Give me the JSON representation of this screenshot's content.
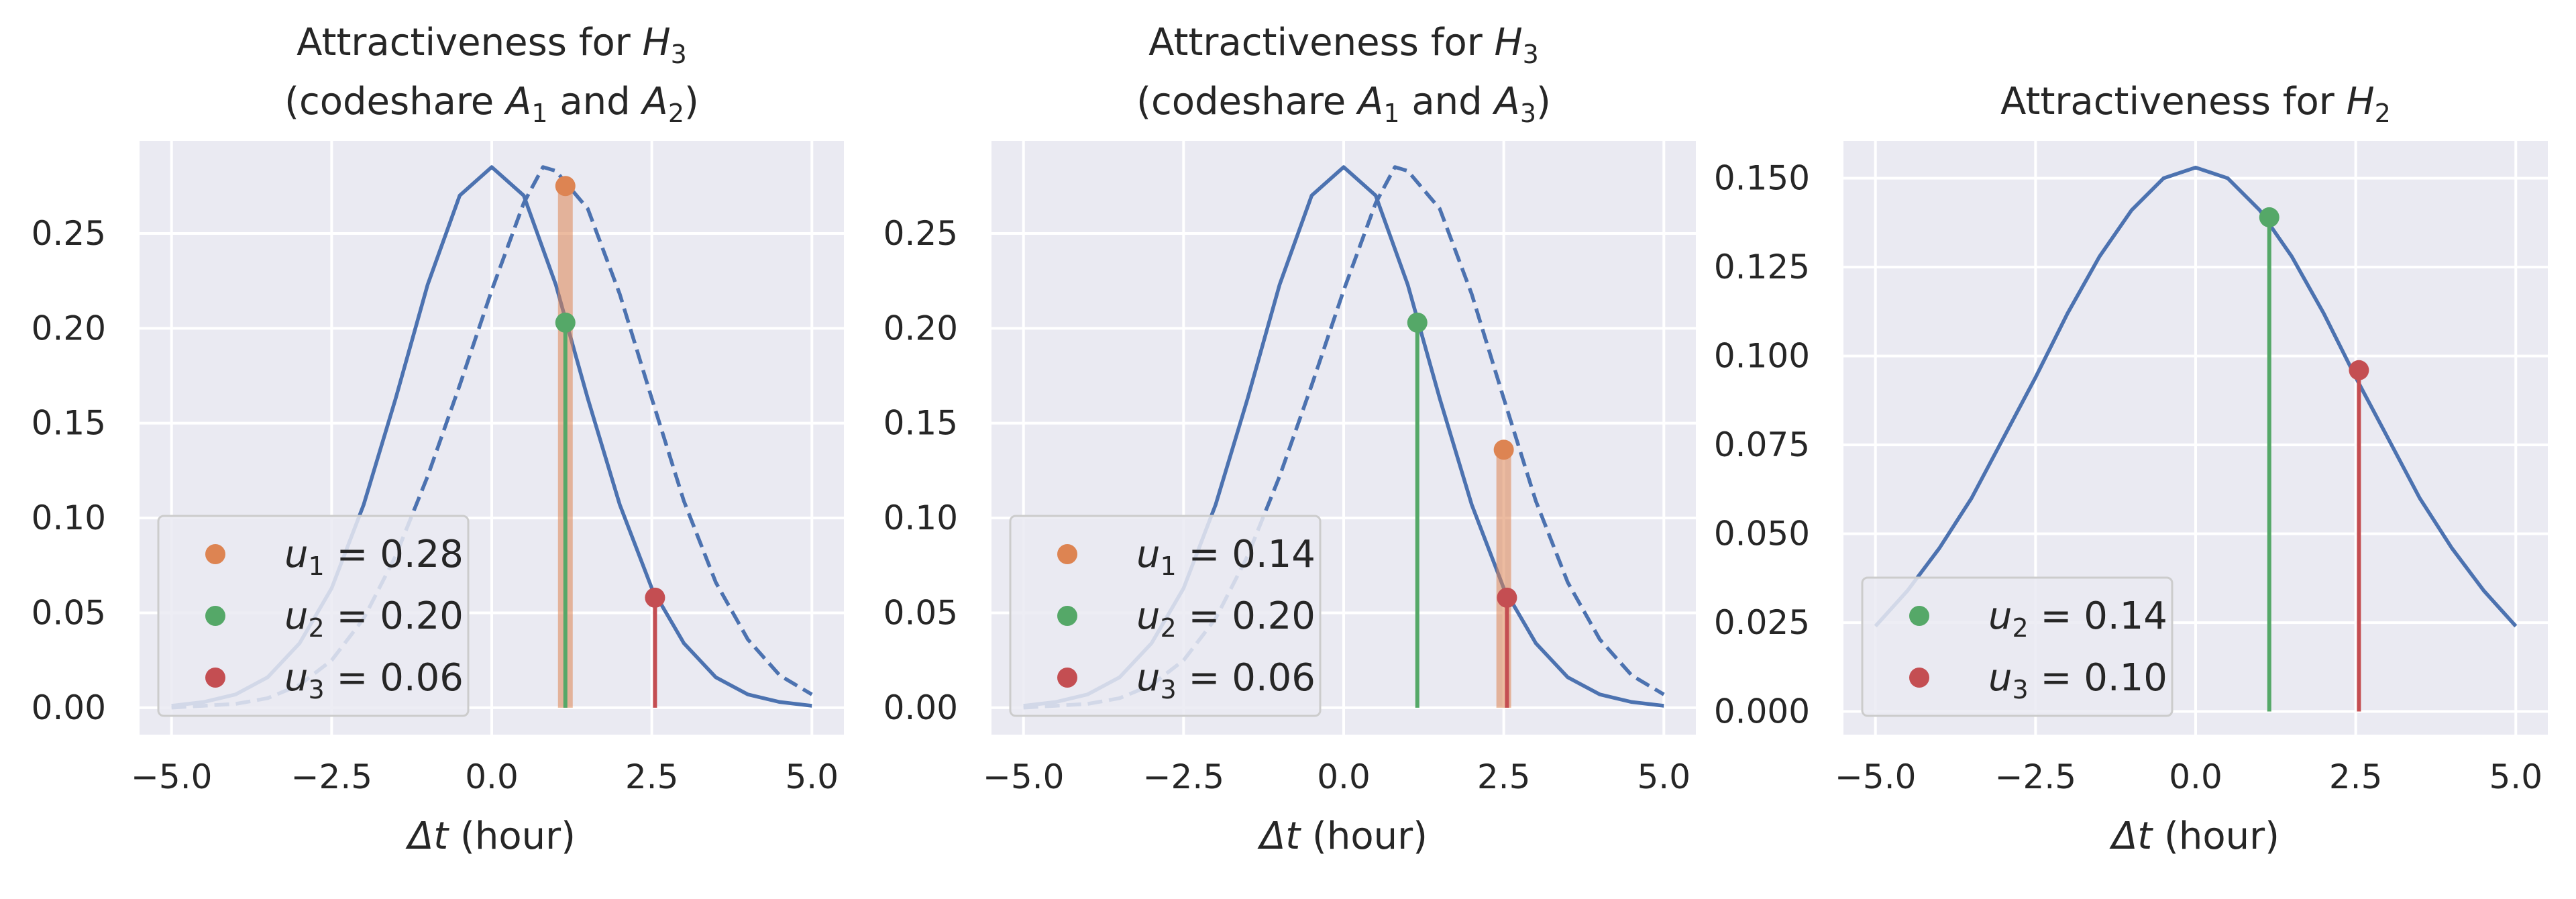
{
  "figure": {
    "colors": {
      "background": "#eaeaf2",
      "grid": "#ffffff",
      "blue": "#4c72b0",
      "orange": "#dd8452",
      "green": "#55a868",
      "red": "#c44e52",
      "text": "#262626",
      "legend_bg": "#eaeaf2",
      "legend_edge": "#cccccc"
    }
  },
  "chart_data": [
    {
      "type": "line",
      "title_line1_text": "Attractiveness for ",
      "title_line1_math": "H",
      "title_line1_sub": "3",
      "title_line2": [
        "(codeshare ",
        "A",
        "1",
        " and ",
        "A",
        "2",
        ")"
      ],
      "xlabel_math": "Δt",
      "xlabel_text": " (hour)",
      "ylabel": "",
      "xlim": [
        -5.5,
        5.5
      ],
      "ylim": [
        -0.0142,
        0.2988
      ],
      "xticks": [
        -5.0,
        -2.5,
        0.0,
        2.5,
        5.0
      ],
      "xtick_labels": [
        "−5.0",
        "−2.5",
        "0.0",
        "2.5",
        "5.0"
      ],
      "yticks": [
        0.0,
        0.05,
        0.1,
        0.15,
        0.2,
        0.25
      ],
      "ytick_labels": [
        "0.00",
        "0.05",
        "0.10",
        "0.15",
        "0.20",
        "0.25"
      ],
      "grid": true,
      "legend_position": "lower-left",
      "series": [
        {
          "style": "solid",
          "x": [
            -5.0,
            -4.5,
            -4.0,
            -3.5,
            -3.0,
            -2.5,
            -2.0,
            -1.5,
            -1.0,
            -0.5,
            0.0,
            0.5,
            1.0,
            1.5,
            2.0,
            2.5,
            3.0,
            3.5,
            4.0,
            4.5,
            5.0
          ],
          "y": [
            0.001,
            0.003,
            0.007,
            0.016,
            0.034,
            0.063,
            0.107,
            0.163,
            0.223,
            0.27,
            0.285,
            0.27,
            0.223,
            0.163,
            0.107,
            0.063,
            0.034,
            0.016,
            0.007,
            0.003,
            0.001
          ]
        },
        {
          "style": "dashed",
          "x": [
            -5.0,
            -4.5,
            -4.0,
            -3.5,
            -3.0,
            -2.5,
            -2.0,
            -1.5,
            -1.0,
            -0.5,
            0.0,
            0.5,
            0.8,
            1.0,
            1.5,
            2.0,
            2.5,
            3.0,
            3.5,
            4.0,
            4.5,
            5.0
          ],
          "y": [
            0.0,
            0.001,
            0.002,
            0.005,
            0.012,
            0.025,
            0.047,
            0.08,
            0.122,
            0.17,
            0.22,
            0.266,
            0.285,
            0.283,
            0.263,
            0.218,
            0.163,
            0.109,
            0.066,
            0.036,
            0.017,
            0.007
          ]
        }
      ],
      "points": [
        {
          "name": "u1",
          "sym": "u",
          "sub": "1",
          "value_label": "0.28",
          "x": 1.15,
          "y": 0.275,
          "color": "orange",
          "stem": true
        },
        {
          "name": "u2",
          "sym": "u",
          "sub": "2",
          "value_label": "0.20",
          "x": 1.15,
          "y": 0.203,
          "color": "green",
          "stem": true
        },
        {
          "name": "u3",
          "sym": "u",
          "sub": "3",
          "value_label": "0.06",
          "x": 2.55,
          "y": 0.058,
          "color": "red",
          "stem": true
        }
      ]
    },
    {
      "type": "line",
      "title_line1_text": "Attractiveness for ",
      "title_line1_math": "H",
      "title_line1_sub": "3",
      "title_line2": [
        "(codeshare ",
        "A",
        "1",
        " and ",
        "A",
        "3",
        ")"
      ],
      "xlabel_math": "Δt",
      "xlabel_text": " (hour)",
      "ylabel": "",
      "xlim": [
        -5.5,
        5.5
      ],
      "ylim": [
        -0.0142,
        0.2988
      ],
      "xticks": [
        -5.0,
        -2.5,
        0.0,
        2.5,
        5.0
      ],
      "xtick_labels": [
        "−5.0",
        "−2.5",
        "0.0",
        "2.5",
        "5.0"
      ],
      "yticks": [
        0.0,
        0.05,
        0.1,
        0.15,
        0.2,
        0.25
      ],
      "ytick_labels": [
        "0.00",
        "0.05",
        "0.10",
        "0.15",
        "0.20",
        "0.25"
      ],
      "grid": true,
      "legend_position": "lower-left",
      "series": [
        {
          "style": "solid",
          "x": [
            -5.0,
            -4.5,
            -4.0,
            -3.5,
            -3.0,
            -2.5,
            -2.0,
            -1.5,
            -1.0,
            -0.5,
            0.0,
            0.5,
            1.0,
            1.5,
            2.0,
            2.5,
            3.0,
            3.5,
            4.0,
            4.5,
            5.0
          ],
          "y": [
            0.001,
            0.003,
            0.007,
            0.016,
            0.034,
            0.063,
            0.107,
            0.163,
            0.223,
            0.27,
            0.285,
            0.27,
            0.223,
            0.163,
            0.107,
            0.063,
            0.034,
            0.016,
            0.007,
            0.003,
            0.001
          ]
        },
        {
          "style": "dashed",
          "x": [
            -5.0,
            -4.5,
            -4.0,
            -3.5,
            -3.0,
            -2.5,
            -2.0,
            -1.5,
            -1.0,
            -0.5,
            0.0,
            0.5,
            0.8,
            1.0,
            1.5,
            2.0,
            2.5,
            3.0,
            3.5,
            4.0,
            4.5,
            5.0
          ],
          "y": [
            0.0,
            0.001,
            0.002,
            0.005,
            0.012,
            0.025,
            0.047,
            0.08,
            0.122,
            0.17,
            0.22,
            0.266,
            0.285,
            0.283,
            0.263,
            0.218,
            0.163,
            0.109,
            0.066,
            0.036,
            0.017,
            0.007
          ]
        }
      ],
      "points": [
        {
          "name": "u1",
          "sym": "u",
          "sub": "1",
          "value_label": "0.14",
          "x": 2.5,
          "y": 0.136,
          "color": "orange",
          "stem": true
        },
        {
          "name": "u2",
          "sym": "u",
          "sub": "2",
          "value_label": "0.20",
          "x": 1.15,
          "y": 0.203,
          "color": "green",
          "stem": true
        },
        {
          "name": "u3",
          "sym": "u",
          "sub": "3",
          "value_label": "0.06",
          "x": 2.55,
          "y": 0.058,
          "color": "red",
          "stem": true
        }
      ]
    },
    {
      "type": "line",
      "title_line1_text": "Attractiveness for ",
      "title_line1_math": "H",
      "title_line1_sub": "2",
      "title_line2": [],
      "xlabel_math": "Δt",
      "xlabel_text": " (hour)",
      "ylabel": "",
      "xlim": [
        -5.5,
        5.5
      ],
      "ylim": [
        -0.0065,
        0.1605
      ],
      "xticks": [
        -5.0,
        -2.5,
        0.0,
        2.5,
        5.0
      ],
      "xtick_labels": [
        "−5.0",
        "−2.5",
        "0.0",
        "2.5",
        "5.0"
      ],
      "yticks": [
        0.0,
        0.025,
        0.05,
        0.075,
        0.1,
        0.125,
        0.15
      ],
      "ytick_labels": [
        "0.000",
        "0.025",
        "0.050",
        "0.075",
        "0.100",
        "0.125",
        "0.150"
      ],
      "grid": true,
      "legend_position": "lower-left",
      "series": [
        {
          "style": "solid",
          "x": [
            -5.0,
            -4.5,
            -4.0,
            -3.5,
            -3.0,
            -2.5,
            -2.0,
            -1.5,
            -1.0,
            -0.5,
            0.0,
            0.5,
            1.0,
            1.5,
            2.0,
            2.5,
            3.0,
            3.5,
            4.0,
            4.5,
            5.0
          ],
          "y": [
            0.024,
            0.034,
            0.046,
            0.06,
            0.077,
            0.094,
            0.112,
            0.128,
            0.141,
            0.15,
            0.153,
            0.15,
            0.141,
            0.128,
            0.112,
            0.094,
            0.077,
            0.06,
            0.046,
            0.034,
            0.024
          ]
        }
      ],
      "points": [
        {
          "name": "u2",
          "sym": "u",
          "sub": "2",
          "value_label": "0.14",
          "x": 1.15,
          "y": 0.139,
          "color": "green",
          "stem": true
        },
        {
          "name": "u3",
          "sym": "u",
          "sub": "3",
          "value_label": "0.10",
          "x": 2.55,
          "y": 0.096,
          "color": "red",
          "stem": true
        }
      ]
    }
  ]
}
